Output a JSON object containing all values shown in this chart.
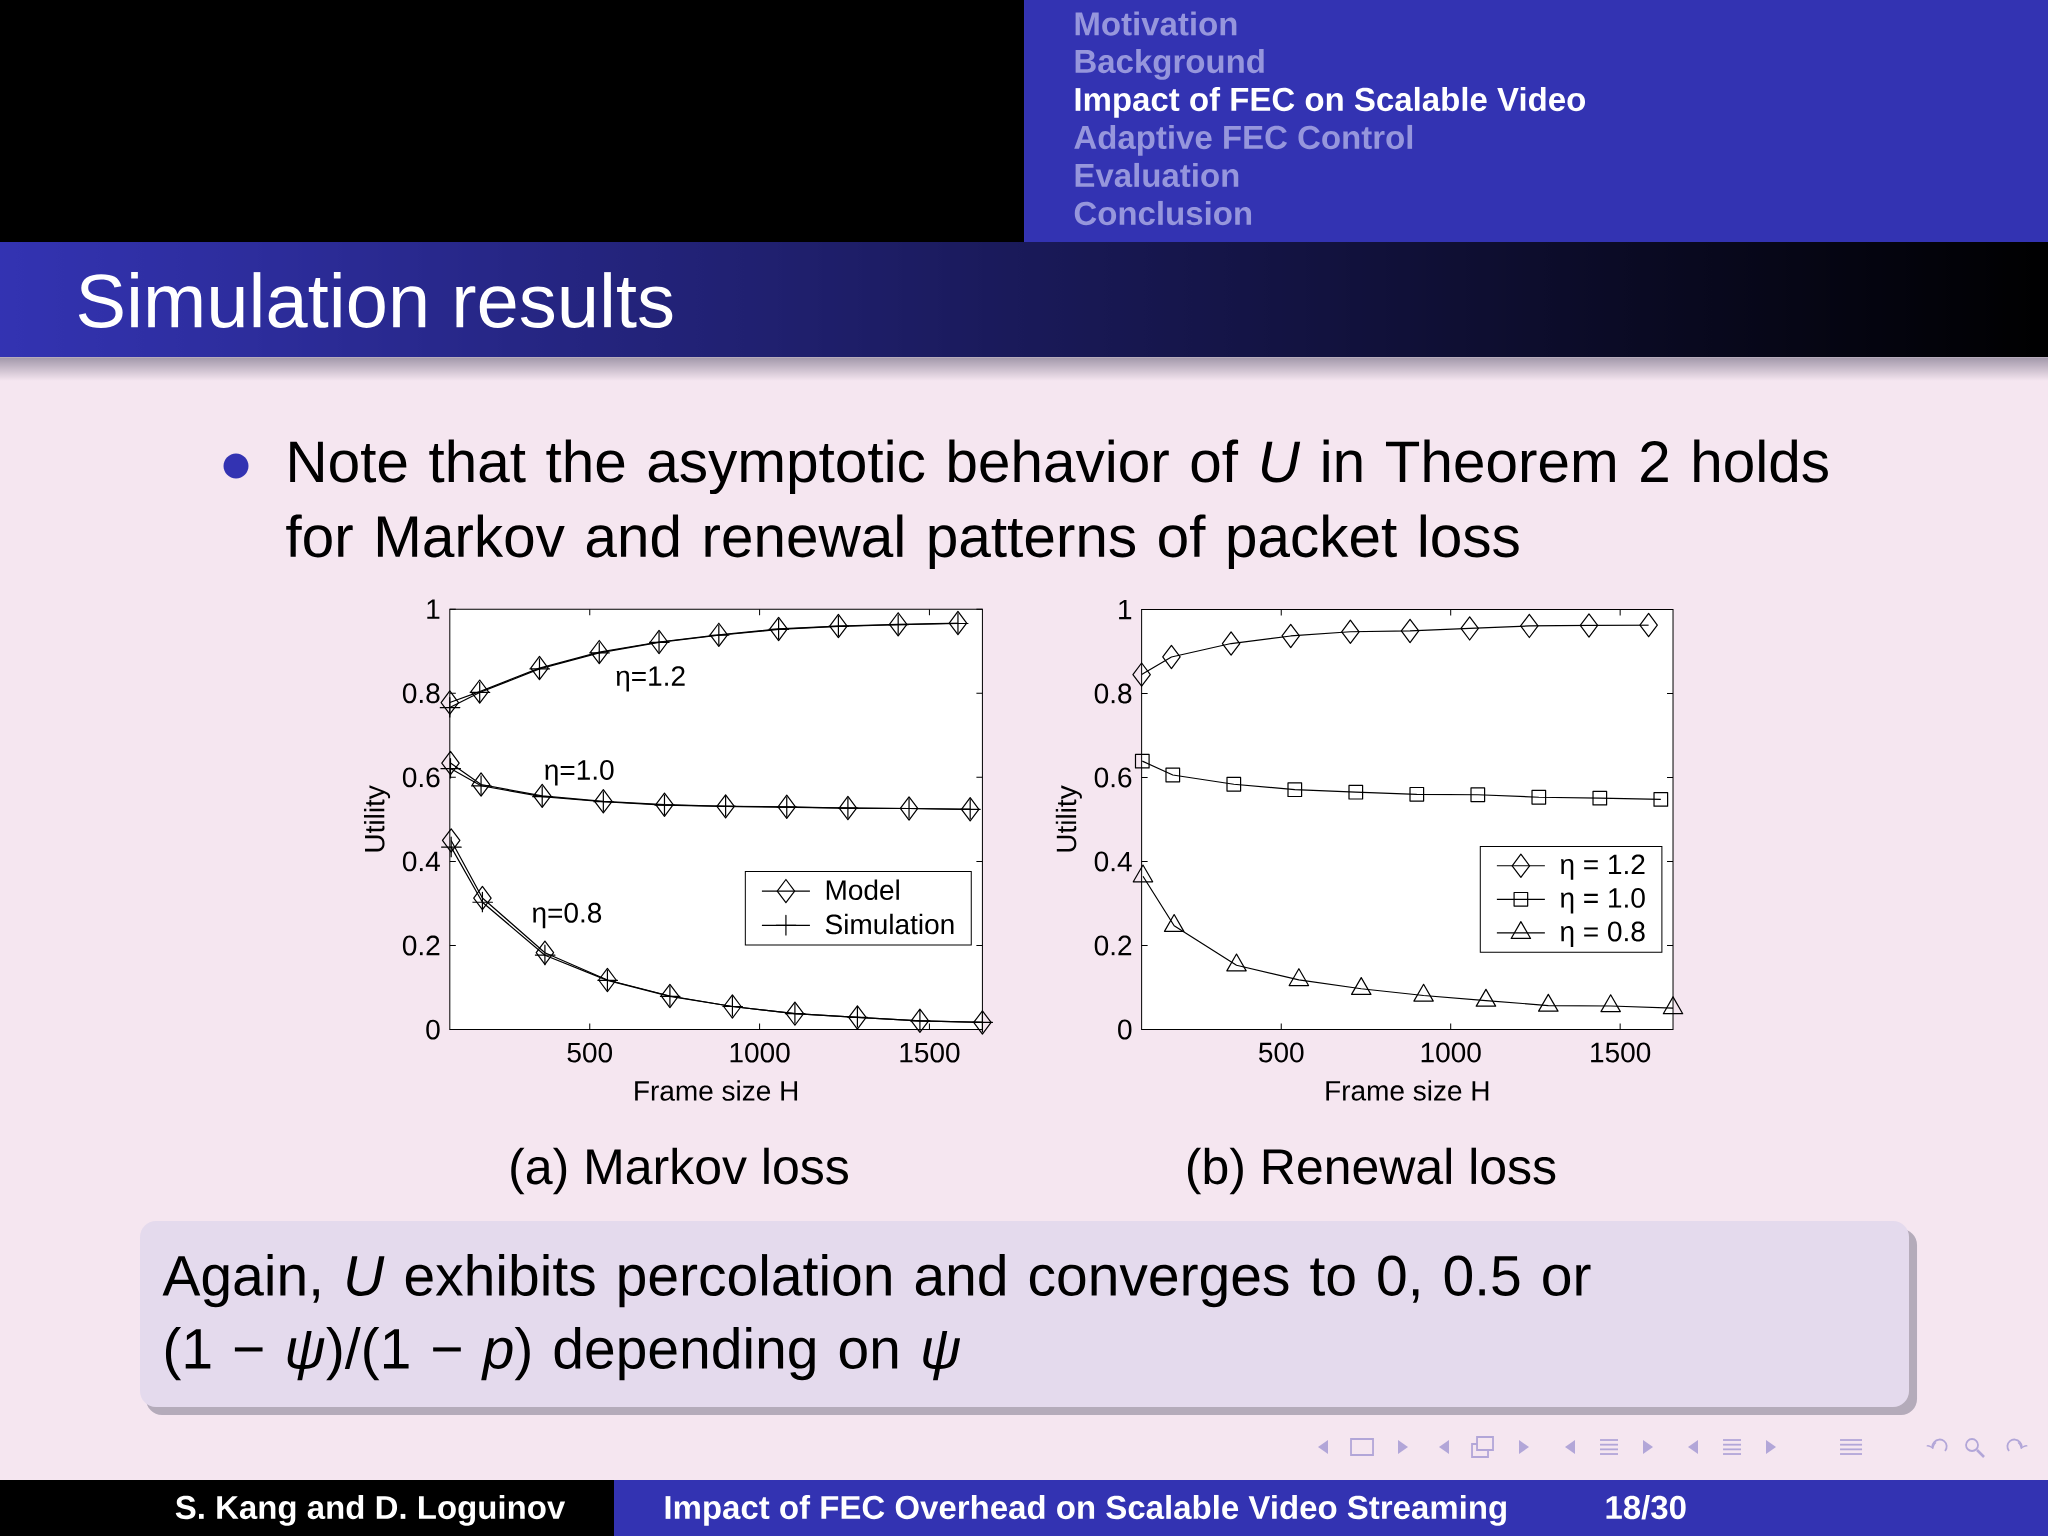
{
  "chart_data": [
    {
      "type": "line",
      "title": "Simulation results",
      "subtitle": "Note that the asymptotic behavior of *U* in Theorem 2 holds for Markov and renewal patterns of packet loss",
      "xlabel": "Frame size H",
      "ylabel": "Utility",
      "xlim": [
        88,
        1656
      ],
      "ylim": [
        0,
        1
      ],
      "xticks": [
        500,
        1000,
        1500
      ],
      "yticks": [
        0,
        0.2,
        0.4,
        0.6,
        0.8,
        1
      ],
      "legend": "bottom right",
      "series": [
        {
          "name": "Model",
          "color": "#000000",
          "marker": "diamond",
          "x": [
            88,
            176,
            352,
            528,
            704,
            880,
            1056,
            1232,
            1408,
            1584
          ],
          "values": [
            0.778,
            0.804,
            0.86,
            0.898,
            0.922,
            0.939,
            0.953,
            0.96,
            0.964,
            0.967
          ]
        },
        {
          "name": "Simulation",
          "color": "#000000",
          "marker": "cross",
          "x": [
            88,
            176,
            352,
            528,
            704,
            880,
            1056,
            1232,
            1408,
            1584
          ],
          "values": [
            0.766,
            0.802,
            0.858,
            0.896,
            0.921,
            0.938,
            0.952,
            0.959,
            0.963,
            0.966
          ]
        },
        {
          "color": "#000000",
          "marker": "diamond",
          "x": [
            90,
            180,
            360,
            540,
            720,
            900,
            1080,
            1260,
            1440,
            1620
          ],
          "values": [
            0.634,
            0.583,
            0.556,
            0.543,
            0.535,
            0.531,
            0.53,
            0.527,
            0.526,
            0.524
          ]
        },
        {
          "color": "#000000",
          "marker": "cross",
          "x": [
            90,
            180,
            360,
            540,
            720,
            900,
            1080,
            1260,
            1440,
            1620
          ],
          "values": [
            0.621,
            0.58,
            0.554,
            0.542,
            0.534,
            0.531,
            0.529,
            0.527,
            0.526,
            0.524
          ]
        },
        {
          "color": "#000000",
          "marker": "diamond",
          "x": [
            92,
            184,
            368,
            552,
            736,
            920,
            1104,
            1288,
            1472,
            1656
          ],
          "values": [
            0.45,
            0.313,
            0.183,
            0.118,
            0.08,
            0.055,
            0.038,
            0.029,
            0.021,
            0.017
          ]
        },
        {
          "color": "#000000",
          "marker": "cross",
          "x": [
            92,
            184,
            368,
            552,
            736,
            920,
            1104,
            1288,
            1472,
            1656
          ],
          "values": [
            0.434,
            0.303,
            0.177,
            0.117,
            0.079,
            0.055,
            0.038,
            0.029,
            0.021,
            0.017
          ]
        }
      ],
      "annotations": [
        "η=1.2",
        "η=1.0",
        "η=0.8",
        "(a) Markov loss",
        "Motivation",
        "Background",
        "Impact of FEC on Scalable Video",
        "Adaptive FEC Control",
        "Evaluation",
        "Conclusion",
        "Again, *U* exhibits percolation and converges to 0, 0.5 or (1 − *ψ*)/(1 − *p*) depending on *ψ*",
        "S. Kang and D. Loguinov",
        "Impact of FEC Overhead on Scalable Video Streaming",
        "18/30"
      ]
    },
    {
      "type": "line",
      "xlabel": "Frame size H",
      "ylabel": "Utility",
      "xlim": [
        88,
        1656
      ],
      "ylim": [
        0,
        1
      ],
      "xticks": [
        500,
        1000,
        1500
      ],
      "yticks": [
        0,
        0.2,
        0.4,
        0.6,
        0.8,
        1
      ],
      "legend": "right",
      "series": [
        {
          "name": "η = 1.2",
          "color": "#000000",
          "marker": "diamond",
          "x": [
            88,
            176,
            352,
            528,
            704,
            880,
            1056,
            1232,
            1408,
            1584
          ],
          "values": [
            0.845,
            0.887,
            0.919,
            0.937,
            0.947,
            0.949,
            0.955,
            0.961,
            0.962,
            0.963
          ]
        },
        {
          "name": "η = 1.0",
          "color": "#000000",
          "marker": "square",
          "x": [
            90,
            180,
            360,
            540,
            720,
            900,
            1080,
            1260,
            1440,
            1620
          ],
          "values": [
            0.639,
            0.606,
            0.584,
            0.571,
            0.565,
            0.56,
            0.559,
            0.553,
            0.551,
            0.548
          ]
        },
        {
          "name": "η = 0.8",
          "color": "#000000",
          "marker": "triangle",
          "x": [
            92,
            184,
            368,
            552,
            736,
            920,
            1104,
            1288,
            1472,
            1656
          ],
          "values": [
            0.365,
            0.247,
            0.153,
            0.118,
            0.097,
            0.081,
            0.069,
            0.057,
            0.056,
            0.051
          ]
        }
      ],
      "annotations": [
        "(b) Renewal loss"
      ]
    }
  ]
}
